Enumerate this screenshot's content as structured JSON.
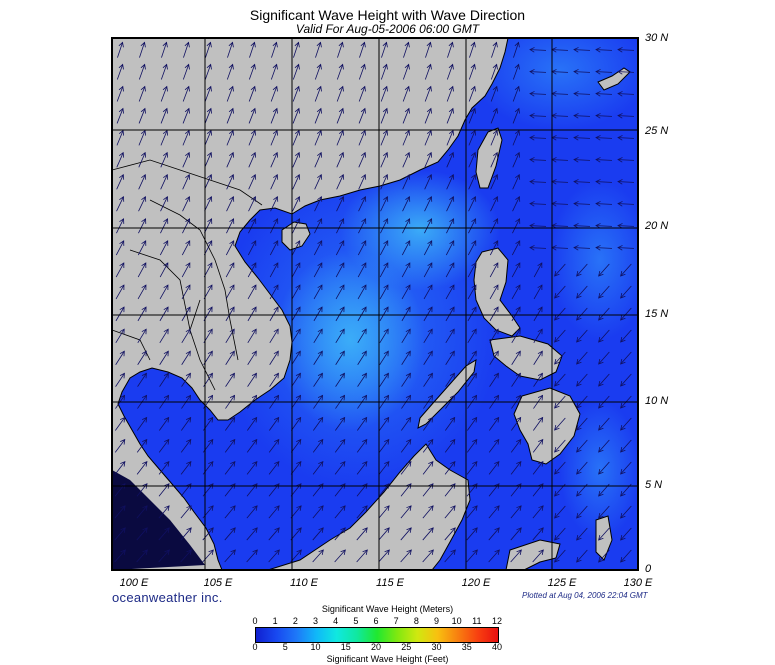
{
  "title": "Significant Wave Height with Wave Direction",
  "subtitle": "Valid For Aug-05-2006 06:00 GMT",
  "lat_labels": [
    "30 N",
    "25 N",
    "20 N",
    "15 N",
    "10 N",
    "5 N",
    "0"
  ],
  "lon_labels": [
    "100 E",
    "105 E",
    "110 E",
    "115 E",
    "120 E",
    "125 E",
    "130 E"
  ],
  "brand": "oceanweather inc.",
  "plotted": "Plotted at Aug 04, 2006 22:04 GMT",
  "legend": {
    "meters_title": "Significant Wave Height (Meters)",
    "feet_title": "Significant Wave Height (Feet)",
    "meters_ticks": [
      "0",
      "1",
      "2",
      "3",
      "4",
      "5",
      "6",
      "7",
      "8",
      "9",
      "10",
      "11",
      "12"
    ],
    "feet_ticks": [
      "0",
      "5",
      "10",
      "15",
      "20",
      "25",
      "30",
      "35",
      "40"
    ],
    "colors": [
      "#1020d0",
      "#1848f0",
      "#1e78f8",
      "#10b8f8",
      "#10e8e0",
      "#10e8a0",
      "#20e830",
      "#80e810",
      "#d0e810",
      "#f8c010",
      "#f88010",
      "#f84010",
      "#e81010"
    ]
  },
  "colors": {
    "land": "#c0c0c0",
    "sea_deep": "#1a3cf0",
    "sea_mid": "#2a6af8",
    "sea_light": "#3aa0f8",
    "arrow": "#101060",
    "grid": "#000000"
  }
}
